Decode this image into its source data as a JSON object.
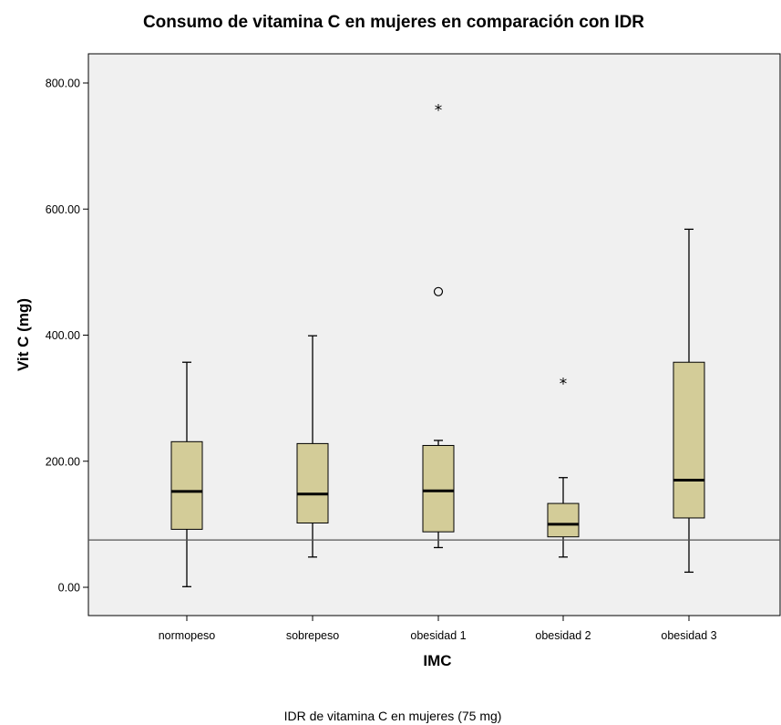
{
  "chart_data": {
    "type": "boxplot",
    "title": "Consumo de vitamina C en mujeres en comparación con IDR",
    "xlabel": "IMC",
    "ylabel": "Vit C (mg)",
    "ylim": [
      -45,
      845
    ],
    "yticks": [
      0,
      200,
      400,
      600,
      800
    ],
    "ytick_labels": [
      "0.00",
      "200.00",
      "400.00",
      "600.00",
      "800.00"
    ],
    "categories": [
      "normopeso",
      "sobrepeso",
      "obesidad 1",
      "obesidad 2",
      "obesidad 3"
    ],
    "boxes": [
      {
        "category": "normopeso",
        "min": 1,
        "q1": 92,
        "median": 152,
        "q3": 231,
        "max": 357,
        "outliers": [],
        "extremes": []
      },
      {
        "category": "sobrepeso",
        "min": 48,
        "q1": 102,
        "median": 148,
        "q3": 228,
        "max": 399,
        "outliers": [],
        "extremes": []
      },
      {
        "category": "obesidad 1",
        "min": 63,
        "q1": 88,
        "median": 153,
        "q3": 225,
        "max": 233,
        "outliers": [
          469
        ],
        "extremes": [
          760
        ]
      },
      {
        "category": "obesidad 2",
        "min": 48,
        "q1": 80,
        "median": 100,
        "q3": 133,
        "max": 174,
        "outliers": [],
        "extremes": [
          326
        ]
      },
      {
        "category": "obesidad 3",
        "min": 24,
        "q1": 110,
        "median": 170,
        "q3": 357,
        "max": 568,
        "outliers": [],
        "extremes": []
      }
    ],
    "reference_line": {
      "value": 75,
      "label": "IDR de vitamina C en mujeres (75 mg)"
    },
    "grid": false,
    "colors": {
      "box_fill": "#d3cc98",
      "plot_background": "#f0f0f0",
      "stroke": "#000000",
      "reference_line": "#555555"
    }
  }
}
